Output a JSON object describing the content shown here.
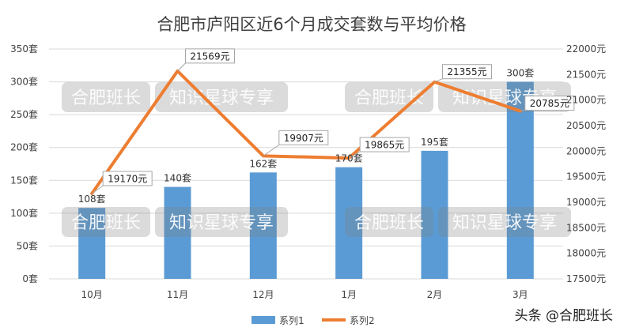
{
  "chart_data": {
    "type": "bar",
    "title": "合肥市庐阳区近6个月成交套数与平均价格",
    "categories": [
      "10月",
      "11月",
      "12月",
      "1月",
      "2月",
      "3月"
    ],
    "series": [
      {
        "name": "系列1",
        "kind": "bar",
        "axis": "left",
        "color": "#5b9bd5",
        "values": [
          108,
          140,
          162,
          170,
          195,
          300
        ],
        "labels": [
          "108套",
          "140套",
          "162套",
          "170套",
          "195套",
          "300套"
        ]
      },
      {
        "name": "系列2",
        "kind": "line",
        "axis": "right",
        "color": "#ed7d31",
        "values": [
          19170,
          21569,
          19907,
          19865,
          21355,
          20785
        ],
        "labels": [
          "19170元",
          "21569元",
          "19907元",
          "19865元",
          "21355元",
          "20785元"
        ]
      }
    ],
    "y_left": {
      "min": 0,
      "max": 350,
      "ticks": [
        0,
        50,
        100,
        150,
        200,
        250,
        300,
        350
      ],
      "tick_labels": [
        "0套",
        "50套",
        "100套",
        "150套",
        "200套",
        "250套",
        "300套",
        "350套"
      ]
    },
    "y_right": {
      "min": 17500,
      "max": 22000,
      "ticks": [
        17500,
        18000,
        18500,
        19000,
        19500,
        20000,
        20500,
        21000,
        21500,
        22000
      ],
      "tick_labels": [
        "17500元",
        "18000元",
        "18500元",
        "19000元",
        "19500元",
        "20000元",
        "20500元",
        "21000元",
        "21500元",
        "22000元"
      ]
    },
    "grid": true,
    "legend_position": "bottom"
  },
  "watermark": {
    "text_left": "合肥班长",
    "text_right": "知识星球专享"
  },
  "footer_credit": "头条 @合肥班长"
}
